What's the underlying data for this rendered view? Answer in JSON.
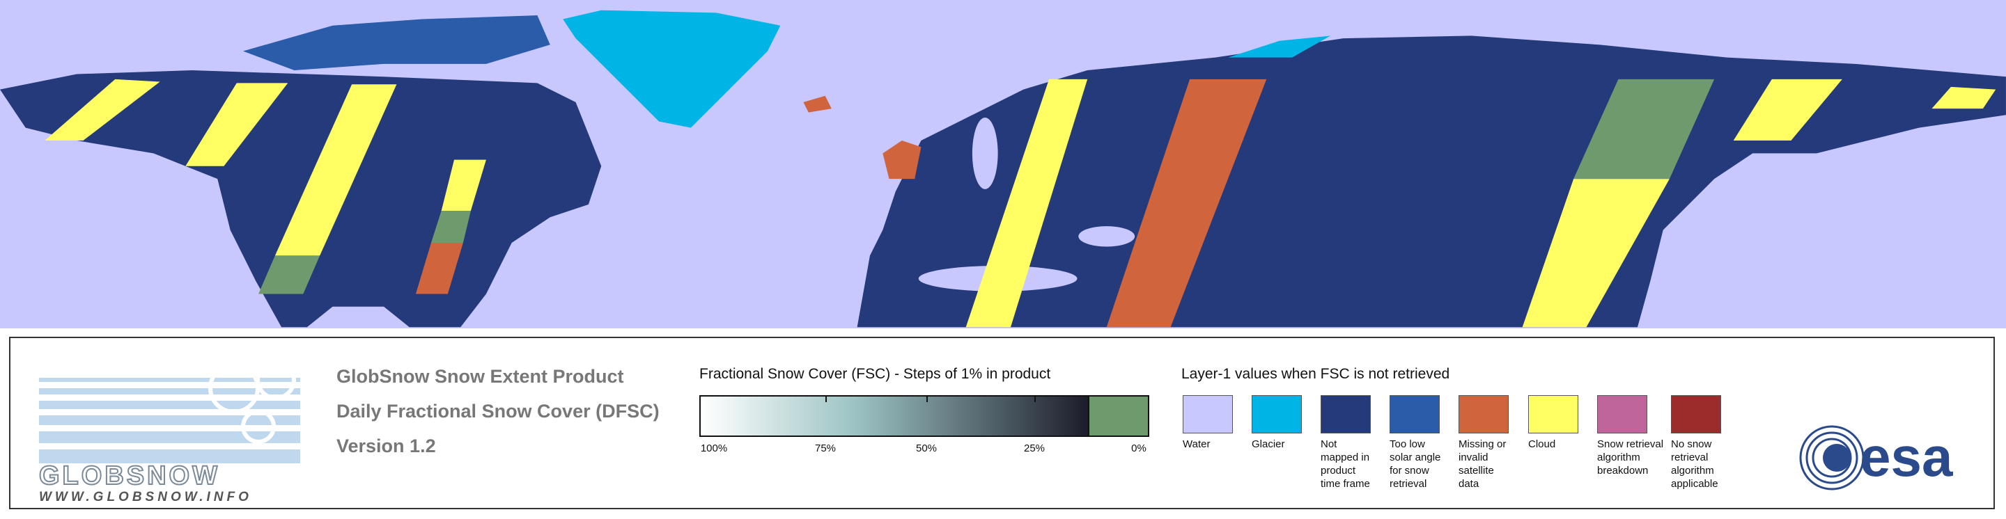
{
  "logo": {
    "name": "GLOBSNOW",
    "url": "WWW.GLOBSNOW.INFO"
  },
  "product": {
    "title": "GlobSnow Snow Extent Product",
    "subtitle": "Daily Fractional Snow Cover (DFSC)",
    "version": "Version 1.2"
  },
  "fsc_scale": {
    "title": "Fractional Snow Cover (FSC) - Steps of 1% in product",
    "ticks": [
      "100%",
      "75%",
      "50%",
      "25%",
      "0%"
    ],
    "colors": {
      "start": "#ffffff",
      "mid": "#9cc3c3",
      "end": "#1c1c2a",
      "zero": "#6f9a6e"
    }
  },
  "layer1": {
    "title": "Layer-1 values when FSC is not retrieved",
    "classes": [
      {
        "label": "Water",
        "color": "#c8c8ff"
      },
      {
        "label": "Glacier",
        "color": "#00b4e6"
      },
      {
        "label": "Not mapped in product time frame",
        "color": "#253a7a"
      },
      {
        "label": "Too low solar angle for snow retrieval",
        "color": "#2a5caa"
      },
      {
        "label": "Missing or invalid satellite data",
        "color": "#d0643c"
      },
      {
        "label": "Cloud",
        "color": "#ffff64"
      },
      {
        "label": "Snow retrieval algorithm breakdown",
        "color": "#c0649c"
      },
      {
        "label": "No snow retrieval algorithm applicable",
        "color": "#9c2c2c"
      }
    ]
  },
  "agency": "esa"
}
